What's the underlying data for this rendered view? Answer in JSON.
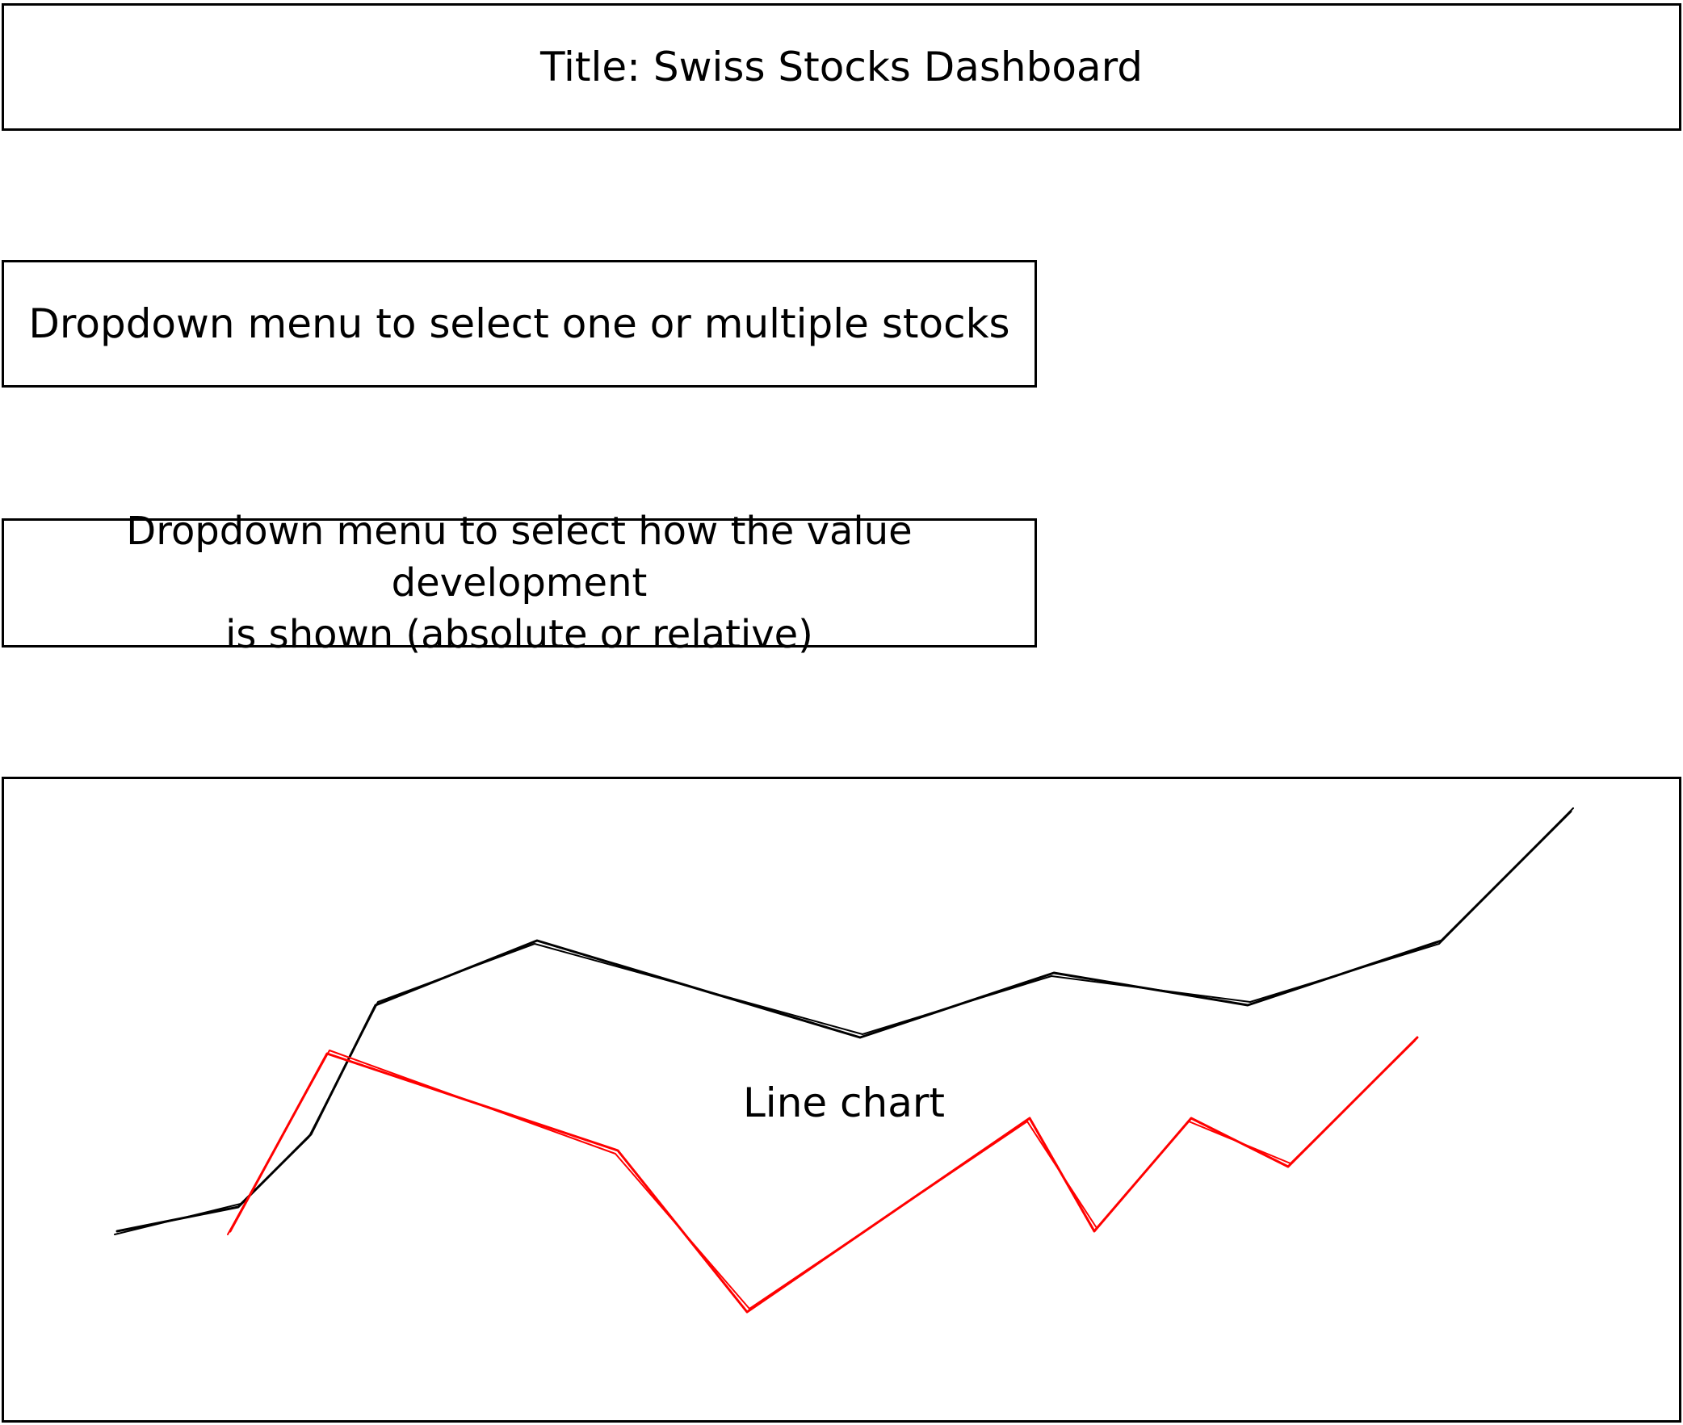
{
  "header": {
    "title": "Title: Swiss Stocks Dashboard"
  },
  "controls": {
    "stock_dropdown_label": "Dropdown menu to select one or multiple stocks",
    "mode_dropdown_label": "Dropdown menu to select how the value development\nis shown (absolute or relative)"
  },
  "chart": {
    "label": "Line chart"
  },
  "colors": {
    "stroke": "#000000",
    "series_black": "#000000",
    "series_red": "#ff0000",
    "background": "#ffffff"
  },
  "chart_data": {
    "type": "line",
    "title": "",
    "xlabel": "",
    "ylabel": "",
    "annotation": "Line chart",
    "series": [
      {
        "color": "#000000",
        "points": [
          [
            0,
            0
          ],
          [
            15,
            3
          ],
          [
            24,
            12
          ],
          [
            32,
            28
          ],
          [
            52,
            36
          ],
          [
            92,
            24
          ],
          [
            116,
            32
          ],
          [
            140,
            28
          ],
          [
            164,
            36
          ],
          [
            180,
            52
          ]
        ]
      },
      {
        "color": "#ff0000",
        "points": [
          [
            14,
            0
          ],
          [
            26,
            22
          ],
          [
            62,
            10
          ],
          [
            78,
            -10
          ],
          [
            113,
            14
          ],
          [
            121,
            0
          ],
          [
            133,
            14
          ],
          [
            145,
            8
          ],
          [
            161,
            24
          ]
        ]
      }
    ],
    "xlim": [
      0,
      180
    ],
    "ylim": [
      -12,
      52
    ],
    "grid": false,
    "legend": "none"
  }
}
